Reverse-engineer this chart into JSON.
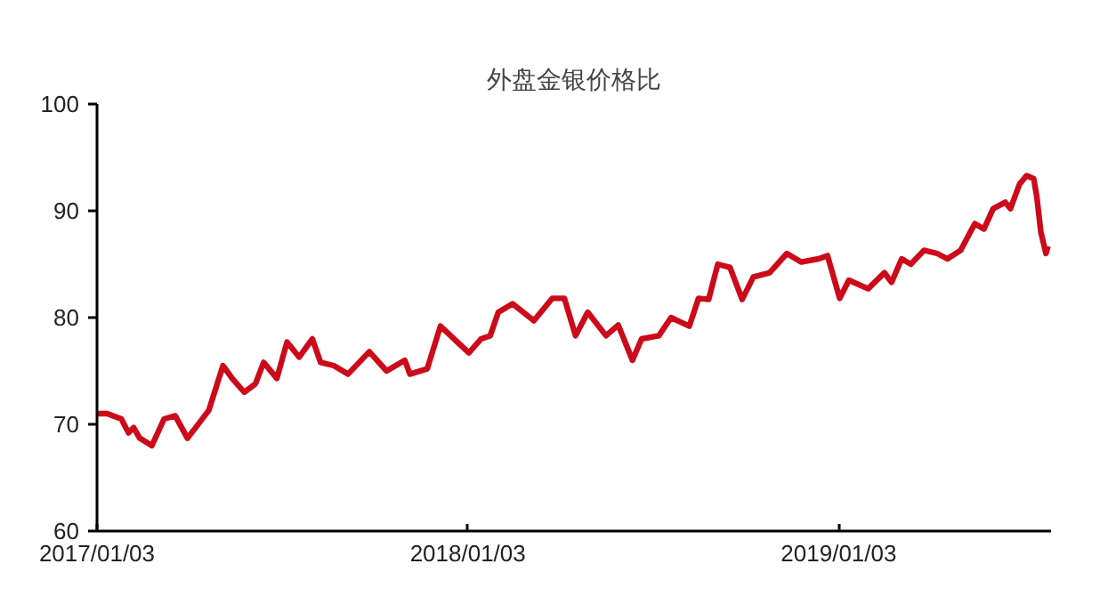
{
  "chart_data": {
    "type": "line",
    "title": "外盘金银价格比",
    "x": [
      "2017-01-03",
      "2017-01-13",
      "2017-01-27",
      "2017-02-03",
      "2017-02-08",
      "2017-02-14",
      "2017-02-26",
      "2017-03-10",
      "2017-03-21",
      "2017-04-02",
      "2017-04-11",
      "2017-04-23",
      "2017-05-07",
      "2017-05-16",
      "2017-05-28",
      "2017-06-08",
      "2017-06-16",
      "2017-06-29",
      "2017-07-09",
      "2017-07-21",
      "2017-08-03",
      "2017-08-11",
      "2017-08-24",
      "2017-09-07",
      "2017-09-28",
      "2017-10-15",
      "2017-11-02",
      "2017-11-07",
      "2017-11-24",
      "2017-12-07",
      "2017-12-17",
      "2018-01-04",
      "2018-01-16",
      "2018-01-25",
      "2018-02-02",
      "2018-02-16",
      "2018-03-09",
      "2018-03-27",
      "2018-04-08",
      "2018-04-19",
      "2018-05-01",
      "2018-05-19",
      "2018-05-31",
      "2018-06-14",
      "2018-06-23",
      "2018-07-10",
      "2018-07-22",
      "2018-08-09",
      "2018-08-18",
      "2018-08-28",
      "2018-09-06",
      "2018-09-18",
      "2018-09-30",
      "2018-10-11",
      "2018-10-27",
      "2018-11-13",
      "2018-11-27",
      "2018-12-14",
      "2018-12-23",
      "2019-01-04",
      "2019-01-13",
      "2019-02-01",
      "2019-02-17",
      "2019-02-24",
      "2019-03-06",
      "2019-03-15",
      "2019-03-28",
      "2019-04-10",
      "2019-04-20",
      "2019-05-03",
      "2019-05-17",
      "2019-05-26",
      "2019-06-04",
      "2019-06-16",
      "2019-06-21",
      "2019-06-30",
      "2019-07-07",
      "2019-07-14",
      "2019-07-17",
      "2019-07-21",
      "2019-07-26",
      "2019-07-28"
    ],
    "series": [
      {
        "color": "#cc0a1a",
        "values": [
          71.0,
          71.0,
          70.5,
          69.2,
          69.7,
          68.7,
          68.0,
          70.5,
          70.8,
          68.7,
          69.8,
          71.3,
          75.5,
          74.3,
          73.0,
          73.8,
          75.8,
          74.3,
          77.7,
          76.3,
          78.0,
          75.8,
          75.5,
          74.7,
          76.8,
          75.0,
          76.0,
          74.7,
          75.2,
          79.2,
          78.3,
          76.7,
          78.0,
          78.3,
          80.5,
          81.3,
          79.7,
          81.8,
          81.8,
          78.3,
          80.5,
          78.3,
          79.3,
          76.0,
          78.0,
          78.3,
          80.0,
          79.2,
          81.8,
          81.7,
          85.0,
          84.7,
          81.7,
          83.8,
          84.2,
          86.0,
          85.2,
          85.5,
          85.8,
          81.8,
          83.5,
          82.7,
          84.2,
          83.3,
          85.5,
          85.0,
          86.3,
          86.0,
          85.5,
          86.3,
          88.8,
          88.3,
          90.2,
          90.8,
          90.2,
          92.5,
          93.3,
          93.0,
          91.3,
          88.0,
          86.0,
          86.7
        ]
      }
    ],
    "xlim": [
      "2017-01-03",
      "2019-07-31"
    ],
    "xticks": [
      {
        "value": "2017-01-03",
        "label": "2017/01/03"
      },
      {
        "value": "2018-01-03",
        "label": "2018/01/03"
      },
      {
        "value": "2019-01-03",
        "label": "2019/01/03"
      }
    ],
    "ylim": [
      60,
      100
    ],
    "yticks": [
      60,
      70,
      80,
      90,
      100
    ],
    "grid": false,
    "marker": "none",
    "line_style": "solid"
  }
}
